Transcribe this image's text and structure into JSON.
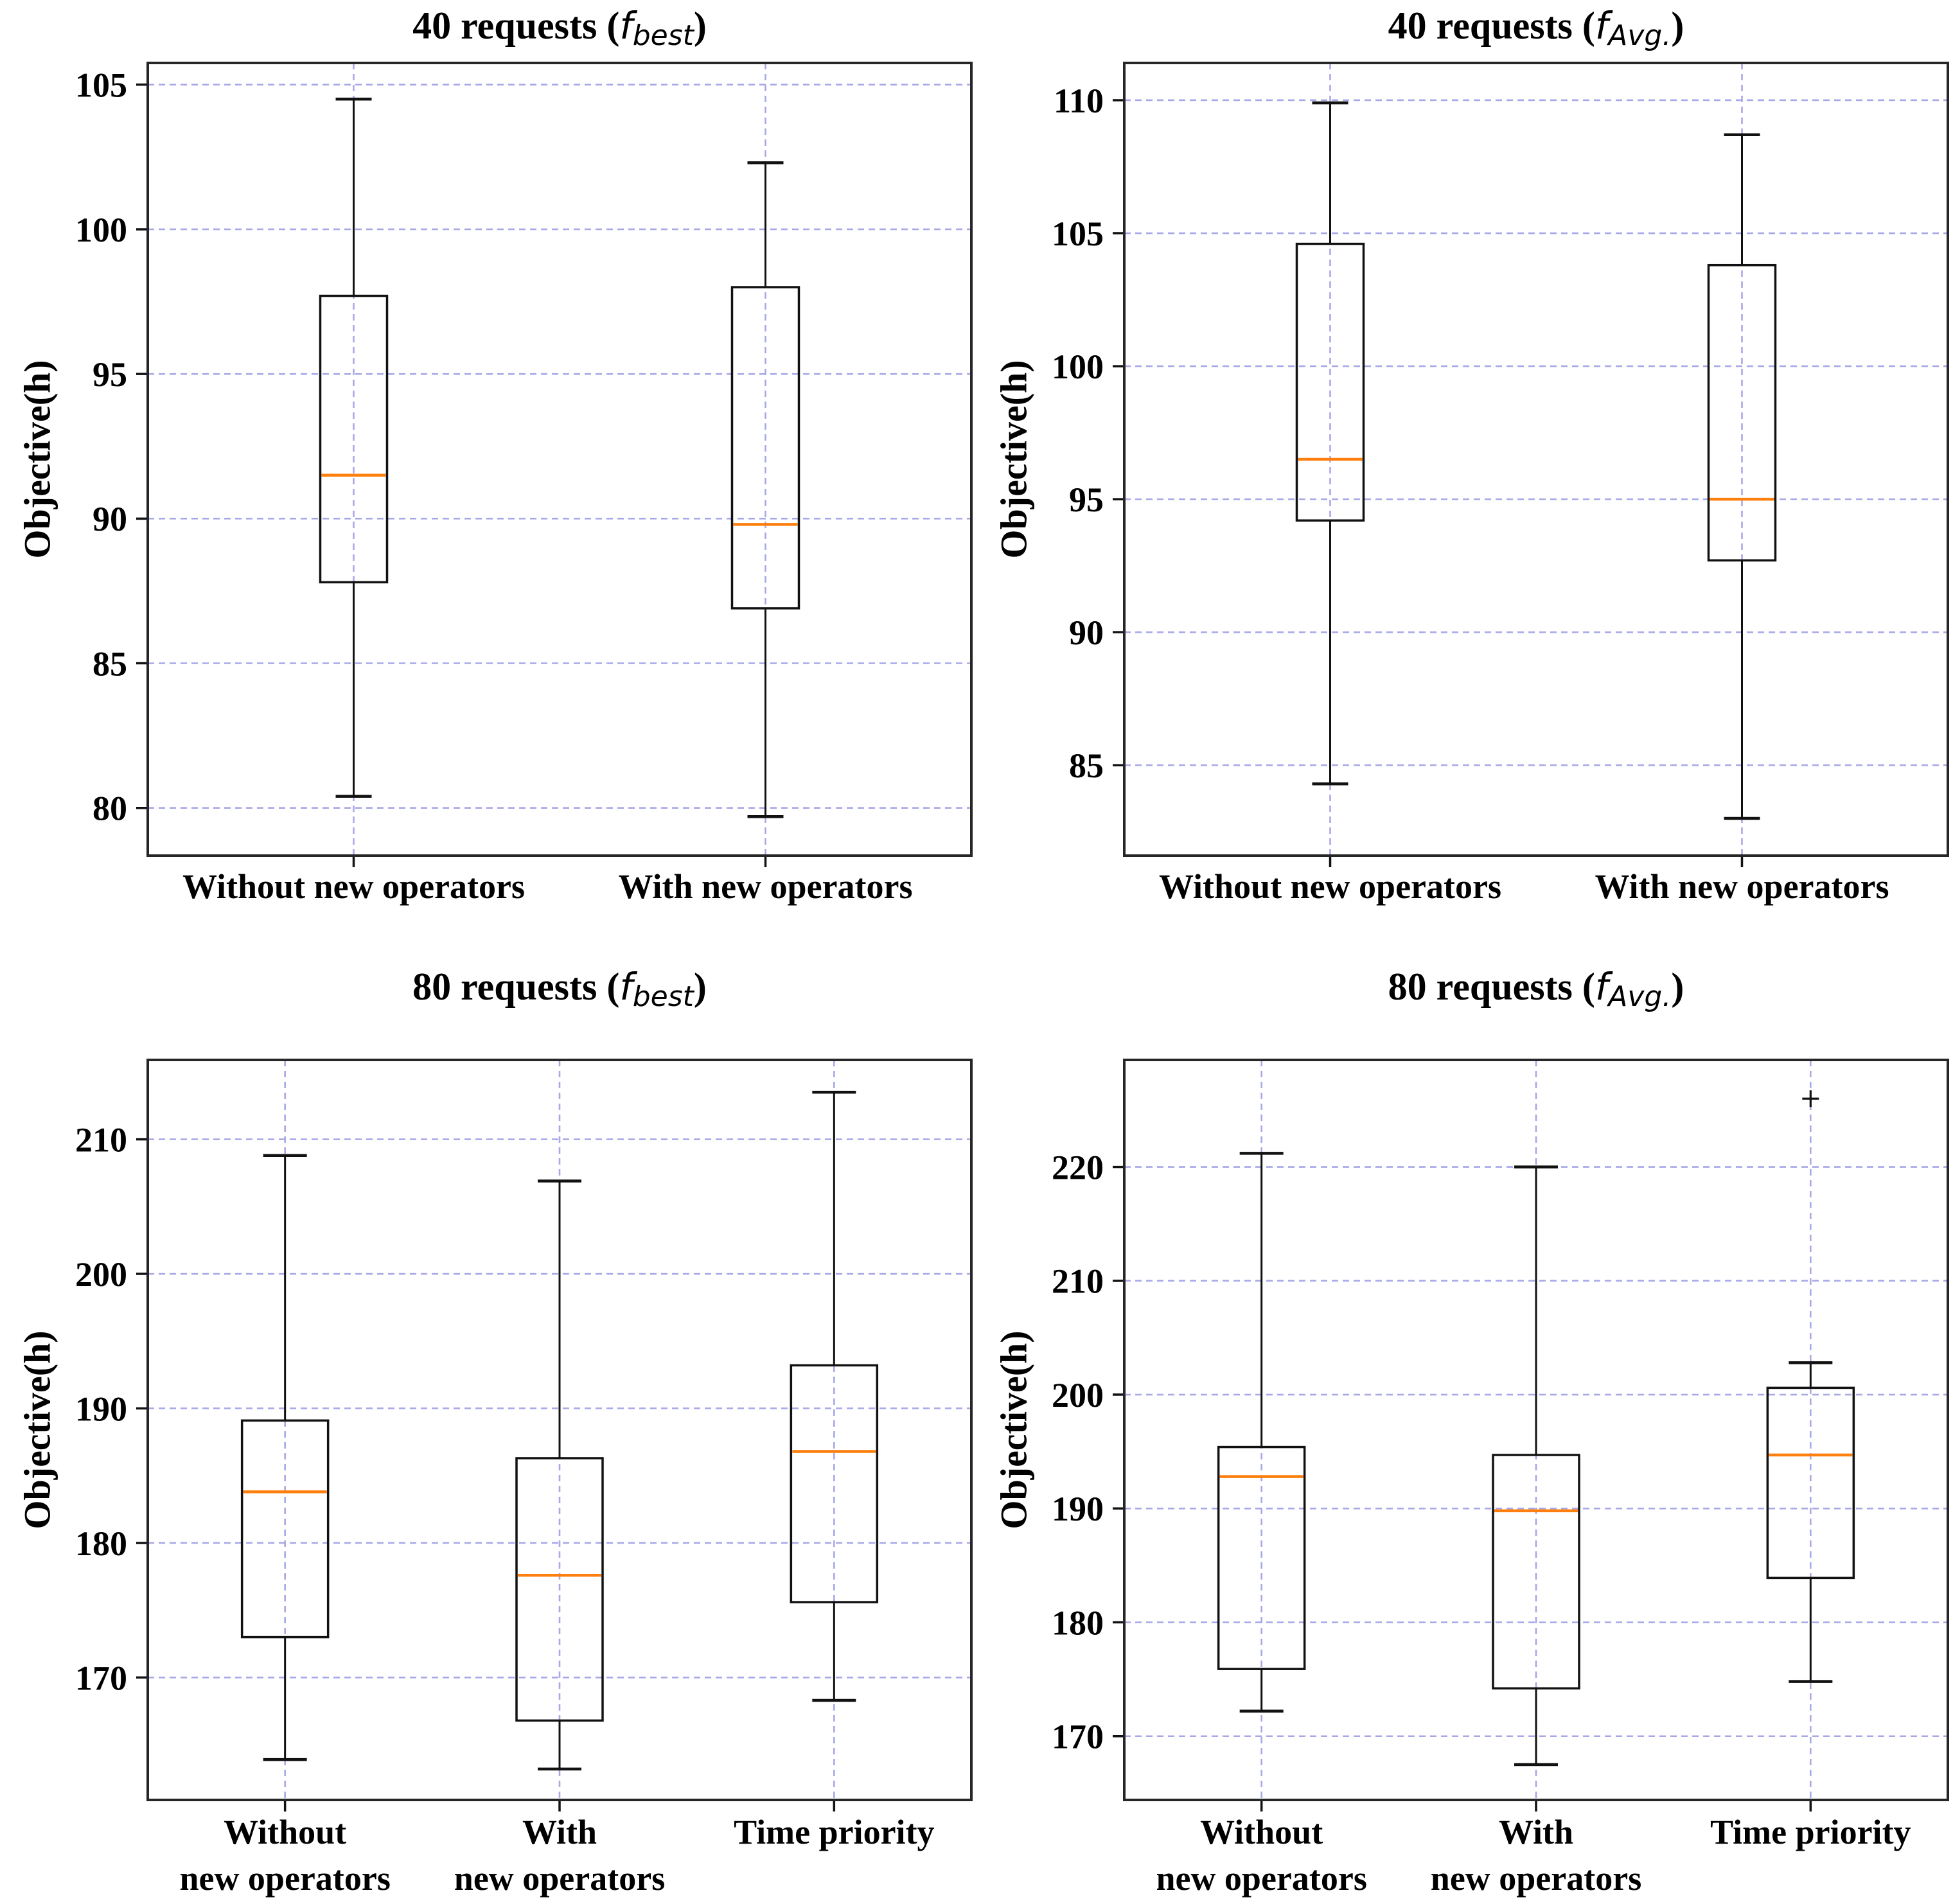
{
  "figure": {
    "background": "#ffffff",
    "grid_color": "#a8a8e8",
    "median_color": "#ff7f0e",
    "axis_color": "#262626",
    "box_color": "#111111"
  },
  "chart_data": [
    {
      "type": "box",
      "title": "40 requests (f_best)",
      "title_parts": {
        "prefix": "40 requests (",
        "math": "f",
        "sub": "best",
        "suffix": ")"
      },
      "xlabel": "",
      "ylabel": "Objective(h)",
      "categories": [
        "Without new operators",
        "With new operators"
      ],
      "category_lines": [
        [
          "Without new operators"
        ],
        [
          "With new operators"
        ]
      ],
      "yticks": [
        80,
        85,
        90,
        95,
        100,
        105
      ],
      "ylim": [
        78.35,
        105.75
      ],
      "grid": true,
      "legend": "none",
      "series": [
        {
          "name": "Without new operators",
          "whisker_low": 80.4,
          "q1": 87.8,
          "median": 91.5,
          "q3": 97.7,
          "whisker_high": 104.5,
          "outliers": []
        },
        {
          "name": "With new operators",
          "whisker_low": 79.7,
          "q1": 86.9,
          "median": 89.8,
          "q3": 98.0,
          "whisker_high": 102.3,
          "outliers": []
        }
      ]
    },
    {
      "type": "box",
      "title": "40 requests (f_Avg.)",
      "title_parts": {
        "prefix": "40 requests (",
        "math": "f",
        "sub": "Avg.",
        "suffix": ")"
      },
      "xlabel": "",
      "ylabel": "Objective(h)",
      "categories": [
        "Without new operators",
        "With new operators"
      ],
      "category_lines": [
        [
          "Without new operators"
        ],
        [
          "With new operators"
        ]
      ],
      "yticks": [
        85,
        90,
        95,
        100,
        105,
        110
      ],
      "ylim": [
        81.6,
        111.4
      ],
      "grid": true,
      "legend": "none",
      "series": [
        {
          "name": "Without new operators",
          "whisker_low": 84.3,
          "q1": 94.2,
          "median": 96.5,
          "q3": 104.6,
          "whisker_high": 109.9,
          "outliers": []
        },
        {
          "name": "With new operators",
          "whisker_low": 83.0,
          "q1": 92.7,
          "median": 95.0,
          "q3": 103.8,
          "whisker_high": 108.7,
          "outliers": []
        }
      ]
    },
    {
      "type": "box",
      "title": "80 requests (f_best)",
      "title_parts": {
        "prefix": "80 requests (",
        "math": "f",
        "sub": "best",
        "suffix": ")"
      },
      "xlabel": "",
      "ylabel": "Objective(h)",
      "categories": [
        "Without new operators",
        "With new operators",
        "Time priority"
      ],
      "category_lines": [
        [
          "Without",
          "new operators"
        ],
        [
          "With",
          "new operators"
        ],
        [
          "Time priority"
        ]
      ],
      "yticks": [
        170,
        180,
        190,
        200,
        210
      ],
      "ylim": [
        160.9,
        215.9
      ],
      "grid": true,
      "legend": "none",
      "series": [
        {
          "name": "Without new operators",
          "whisker_low": 163.9,
          "q1": 173.0,
          "median": 183.8,
          "q3": 189.1,
          "whisker_high": 208.8,
          "outliers": []
        },
        {
          "name": "With new operators",
          "whisker_low": 163.2,
          "q1": 166.8,
          "median": 177.6,
          "q3": 186.3,
          "whisker_high": 206.9,
          "outliers": []
        },
        {
          "name": "Time priority",
          "whisker_low": 168.3,
          "q1": 175.6,
          "median": 186.8,
          "q3": 193.2,
          "whisker_high": 213.5,
          "outliers": []
        }
      ]
    },
    {
      "type": "box",
      "title": "80 requests (f_Avg.)",
      "title_parts": {
        "prefix": "80 requests (",
        "math": "f",
        "sub": "Avg.",
        "suffix": ")"
      },
      "xlabel": "",
      "ylabel": "Objective(h)",
      "categories": [
        "Without new operators",
        "With new operators",
        "Time priority"
      ],
      "category_lines": [
        [
          "Without",
          "new operators"
        ],
        [
          "With",
          "new operators"
        ],
        [
          "Time priority"
        ]
      ],
      "yticks": [
        170,
        180,
        190,
        200,
        210,
        220
      ],
      "ylim": [
        164.4,
        229.4
      ],
      "grid": true,
      "legend": "none",
      "series": [
        {
          "name": "Without new operators",
          "whisker_low": 172.2,
          "q1": 175.9,
          "median": 192.8,
          "q3": 195.4,
          "whisker_high": 221.2,
          "outliers": []
        },
        {
          "name": "With new operators",
          "whisker_low": 167.5,
          "q1": 174.2,
          "median": 189.8,
          "q3": 194.7,
          "whisker_high": 220.0,
          "outliers": []
        },
        {
          "name": "Time priority",
          "whisker_low": 174.8,
          "q1": 183.9,
          "median": 194.7,
          "q3": 200.6,
          "whisker_high": 202.8,
          "outliers": [
            226.0
          ]
        }
      ]
    }
  ]
}
